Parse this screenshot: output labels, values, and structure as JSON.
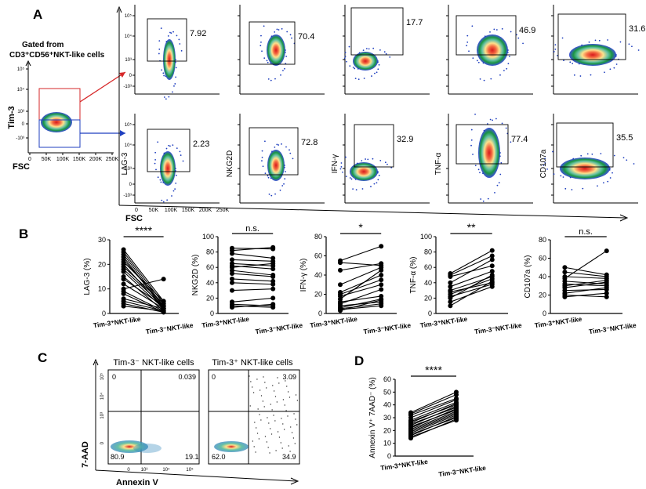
{
  "panel_labels": {
    "a": "A",
    "b": "B",
    "c": "C",
    "d": "D"
  },
  "panel_a": {
    "gating_line1": "Gated from",
    "gating_line2": "CD3⁺CD56⁺NKT-like cells",
    "gate_yaxis": "Tim-3",
    "gate_xaxis": "FSC",
    "gate_yticks": [
      "10⁵",
      "10⁴",
      "10³",
      "0",
      "-10³"
    ],
    "gate_xticks": [
      "0",
      "50K",
      "100K",
      "150K",
      "200K",
      "250K"
    ],
    "y_labels": [
      "LAG-3",
      "NKG2D",
      "IFN-γ",
      "TNF-α",
      "CD107a"
    ],
    "x_label": "FSC",
    "small_yticks": [
      "10⁵",
      "10⁴",
      "10³",
      "0",
      "-10³"
    ],
    "small_xticks": [
      "0",
      "50K",
      "100K",
      "150K",
      "200K",
      "250K"
    ],
    "top_values": [
      "7.92",
      "70.4",
      "17.7",
      "46.9",
      "31.6"
    ],
    "bottom_values": [
      "2.23",
      "72.8",
      "32.9",
      "77.4",
      "35.5"
    ]
  },
  "chart_data": [
    {
      "type": "line",
      "panel": "B",
      "ylabel": "LAG-3 (%)",
      "ylim": [
        0,
        30
      ],
      "yticks": [
        "0",
        "10",
        "20",
        "30"
      ],
      "categories": [
        "Tim-3⁺NKT-like",
        "Tim-3⁻NKT-like"
      ],
      "significance": "****",
      "pairs": [
        [
          26,
          5
        ],
        [
          25,
          4
        ],
        [
          24,
          3
        ],
        [
          23,
          2
        ],
        [
          22,
          3
        ],
        [
          21,
          5
        ],
        [
          20,
          2
        ],
        [
          19,
          4
        ],
        [
          18,
          3
        ],
        [
          17,
          2
        ],
        [
          15,
          1
        ],
        [
          14,
          3
        ],
        [
          12,
          2
        ],
        [
          10,
          14
        ],
        [
          9,
          1
        ],
        [
          8,
          0.5
        ],
        [
          6,
          2
        ],
        [
          5,
          1
        ],
        [
          4,
          0.5
        ],
        [
          3,
          1
        ]
      ]
    },
    {
      "type": "line",
      "panel": "B",
      "ylabel": "NKG2D (%)",
      "ylim": [
        0,
        100
      ],
      "yticks": [
        "0",
        "20",
        "40",
        "60",
        "80",
        "100"
      ],
      "categories": [
        "Tim-3⁺NKT-like",
        "Tim-3⁻NKT-like"
      ],
      "significance": "n.s.",
      "pairs": [
        [
          85,
          84
        ],
        [
          82,
          86
        ],
        [
          78,
          72
        ],
        [
          70,
          68
        ],
        [
          65,
          62
        ],
        [
          62,
          58
        ],
        [
          60,
          65
        ],
        [
          56,
          50
        ],
        [
          52,
          48
        ],
        [
          45,
          42
        ],
        [
          40,
          38
        ],
        [
          30,
          32
        ],
        [
          15,
          20
        ],
        [
          12,
          10
        ],
        [
          10,
          8
        ],
        [
          8,
          12
        ]
      ]
    },
    {
      "type": "line",
      "panel": "B",
      "ylabel": "IFN-γ (%)",
      "ylim": [
        0,
        80
      ],
      "yticks": [
        "0",
        "20",
        "40",
        "60",
        "80"
      ],
      "categories": [
        "Tim-3⁺NKT-like",
        "Tim-3⁻NKT-like"
      ],
      "significance": "*",
      "pairs": [
        [
          55,
          70
        ],
        [
          53,
          50
        ],
        [
          45,
          52
        ],
        [
          30,
          48
        ],
        [
          22,
          40
        ],
        [
          20,
          35
        ],
        [
          18,
          30
        ],
        [
          15,
          45
        ],
        [
          12,
          18
        ],
        [
          10,
          25
        ],
        [
          8,
          12
        ],
        [
          6,
          15
        ],
        [
          5,
          10
        ],
        [
          4,
          8
        ],
        [
          3,
          14
        ]
      ]
    },
    {
      "type": "line",
      "panel": "B",
      "ylabel": "TNF-α (%)",
      "ylim": [
        0,
        100
      ],
      "yticks": [
        "0",
        "20",
        "40",
        "60",
        "80",
        "100"
      ],
      "categories": [
        "Tim-3⁺NKT-like",
        "Tim-3⁻NKT-like"
      ],
      "significance": "**",
      "pairs": [
        [
          52,
          82
        ],
        [
          50,
          75
        ],
        [
          48,
          62
        ],
        [
          40,
          70
        ],
        [
          35,
          55
        ],
        [
          30,
          48
        ],
        [
          28,
          40
        ],
        [
          25,
          45
        ],
        [
          22,
          38
        ],
        [
          20,
          50
        ],
        [
          15,
          35
        ],
        [
          10,
          42
        ]
      ]
    },
    {
      "type": "line",
      "panel": "B",
      "ylabel": "CD107a (%)",
      "ylim": [
        0,
        80
      ],
      "yticks": [
        "0",
        "20",
        "40",
        "60",
        "80"
      ],
      "categories": [
        "Tim-3⁺NKT-like",
        "Tim-3⁻NKT-like"
      ],
      "significance": "n.s.",
      "pairs": [
        [
          50,
          42
        ],
        [
          45,
          40
        ],
        [
          40,
          38
        ],
        [
          38,
          68
        ],
        [
          35,
          32
        ],
        [
          32,
          30
        ],
        [
          30,
          36
        ],
        [
          28,
          34
        ],
        [
          25,
          26
        ],
        [
          22,
          28
        ],
        [
          20,
          18
        ],
        [
          18,
          22
        ]
      ]
    },
    {
      "type": "line",
      "panel": "D",
      "ylabel": "Annexin V⁺ 7AAD⁻ (%)",
      "ylim": [
        0,
        60
      ],
      "yticks": [
        "0",
        "10",
        "20",
        "30",
        "40",
        "50",
        "60"
      ],
      "categories": [
        "Tim-3⁺NKT-like",
        "Tim-3⁻NKT-like"
      ],
      "significance": "****",
      "pairs": [
        [
          34,
          50
        ],
        [
          33,
          48
        ],
        [
          32,
          45
        ],
        [
          30,
          44
        ],
        [
          28,
          42
        ],
        [
          27,
          40
        ],
        [
          26,
          41
        ],
        [
          25,
          38
        ],
        [
          24,
          39
        ],
        [
          23,
          36
        ],
        [
          22,
          37
        ],
        [
          21,
          35
        ],
        [
          20,
          34
        ],
        [
          19,
          33
        ],
        [
          18,
          32
        ],
        [
          17,
          30
        ],
        [
          16,
          31
        ],
        [
          15,
          28
        ],
        [
          14,
          29
        ]
      ]
    }
  ],
  "panel_c": {
    "left_title": "Tim-3⁻ NKT-like cells",
    "right_title": "Tim-3⁺ NKT-like cells",
    "y_label": "7-AAD",
    "x_label": "Annexin V",
    "yticks": [
      "10⁵",
      "10⁴",
      "10³",
      "0"
    ],
    "xticks": [
      "0",
      "10³",
      "10⁴",
      "10⁵"
    ],
    "left_quadrants": {
      "tl": "0",
      "tr": "0.039",
      "bl": "80.9",
      "br": "19.1"
    },
    "right_quadrants": {
      "tl": "0",
      "tr": "3.09",
      "bl": "62.0",
      "br": "34.9"
    }
  }
}
